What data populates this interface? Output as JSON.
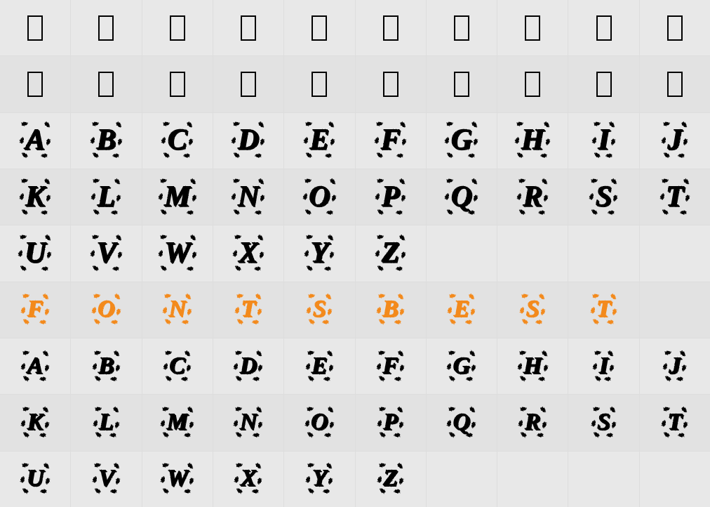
{
  "grid": {
    "columns": 10,
    "row_count": 9,
    "background_color": "#e8e8e8",
    "alt_background_color": "#e2e2e2",
    "grid_line_color": "#dddddd",
    "rows": [
      {
        "type": "missing-glyph",
        "cells": [
          "box",
          "box",
          "box",
          "box",
          "box",
          "box",
          "box",
          "box",
          "box",
          "box"
        ]
      },
      {
        "type": "missing-glyph",
        "cells": [
          "box",
          "box",
          "box",
          "box",
          "box",
          "box",
          "box",
          "box",
          "box",
          "box"
        ]
      },
      {
        "type": "letter-large",
        "color": "#000000",
        "cells": [
          "A",
          "B",
          "C",
          "D",
          "E",
          "F",
          "G",
          "H",
          "I",
          "J"
        ]
      },
      {
        "type": "letter-large",
        "color": "#000000",
        "cells": [
          "K",
          "L",
          "M",
          "N",
          "O",
          "P",
          "Q",
          "R",
          "S",
          "T"
        ]
      },
      {
        "type": "letter-large",
        "color": "#000000",
        "cells": [
          "U",
          "V",
          "W",
          "X",
          "Y",
          "Z",
          "",
          "",
          "",
          ""
        ]
      },
      {
        "type": "letter-small",
        "color": "#f38a1f",
        "cells": [
          "F",
          "O",
          "N",
          "T",
          "S",
          "B",
          "E",
          "S",
          "T",
          ""
        ]
      },
      {
        "type": "letter-small",
        "color": "#000000",
        "cells": [
          "A",
          "B",
          "C",
          "D",
          "E",
          "F",
          "G",
          "H",
          "I",
          "J"
        ]
      },
      {
        "type": "letter-small",
        "color": "#000000",
        "cells": [
          "K",
          "L",
          "M",
          "N",
          "O",
          "P",
          "Q",
          "R",
          "S",
          "T"
        ]
      },
      {
        "type": "letter-small",
        "color": "#000000",
        "cells": [
          "U",
          "V",
          "W",
          "X",
          "Y",
          "Z",
          "",
          "",
          "",
          ""
        ]
      }
    ]
  },
  "glyph_style": {
    "large_fontsize": 42,
    "small_fontsize": 34,
    "missing_glyph_box": {
      "width": 22,
      "height": 36,
      "border_width": 2.5,
      "border_color": "#000000"
    },
    "leaf_marker": "❧"
  }
}
